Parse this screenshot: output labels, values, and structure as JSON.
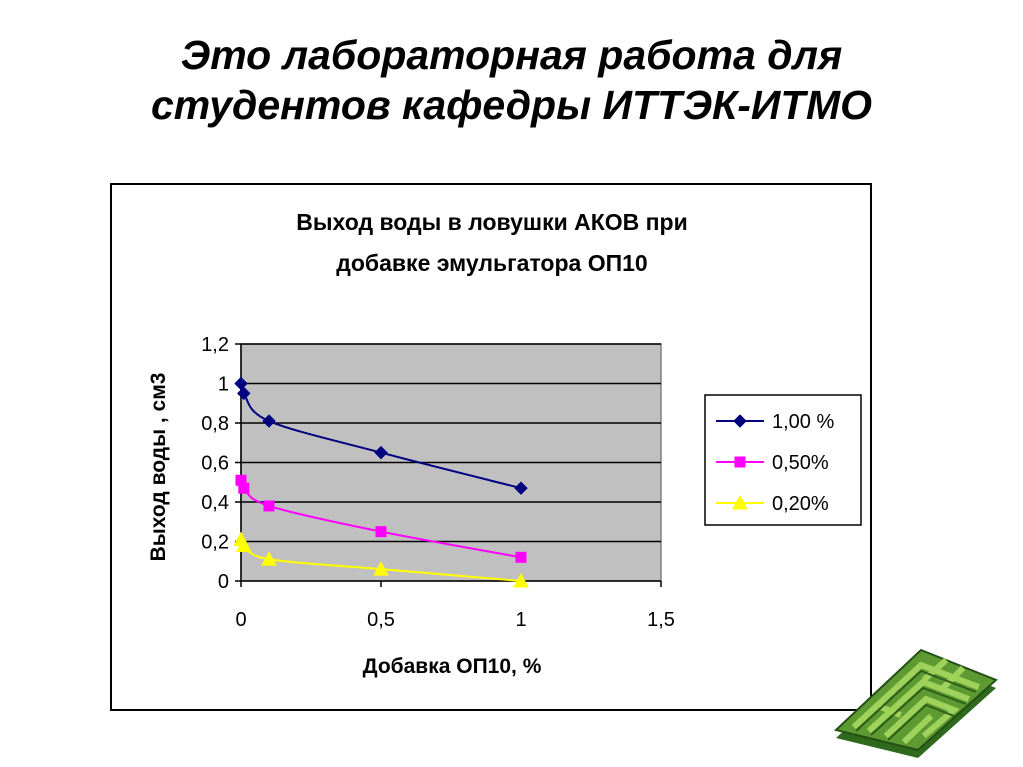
{
  "slide": {
    "title_line1": "Это лабораторная работа для",
    "title_line2": "студентов кафедры ИТТЭК-ИТМО"
  },
  "colors": {
    "plot_background": "#c0c0c0",
    "series_1": "#000080",
    "series_2": "#ff00ff",
    "series_3": "#ffff00"
  },
  "chart_data": {
    "type": "line",
    "title_line1": "Выход воды в ловушки АКОВ при",
    "title_line2": "добавке эмульгатора ОП10",
    "xlabel": "Добавка ОП10, %",
    "ylabel": "Выход воды , см3",
    "xlim": [
      0,
      1.5
    ],
    "ylim": [
      0,
      1.2
    ],
    "x_ticks": [
      "0",
      "0,5",
      "1",
      "1,5"
    ],
    "y_ticks": [
      "0",
      "0,2",
      "0,4",
      "0,6",
      "0,8",
      "1",
      "1,2"
    ],
    "grid": "horizontal",
    "legend_position": "right",
    "series": [
      {
        "name": "1,00 %",
        "marker": "diamond",
        "color": "#000080",
        "x": [
          0,
          0.01,
          0.1,
          0.5,
          1.0
        ],
        "y": [
          1.0,
          0.95,
          0.81,
          0.65,
          0.47
        ]
      },
      {
        "name": "0,50%",
        "marker": "square",
        "color": "#ff00ff",
        "x": [
          0,
          0.01,
          0.1,
          0.5,
          1.0
        ],
        "y": [
          0.51,
          0.47,
          0.38,
          0.25,
          0.12
        ]
      },
      {
        "name": "0,20%",
        "marker": "triangle",
        "color": "#ffff00",
        "x": [
          0,
          0.01,
          0.1,
          0.5,
          1.0
        ],
        "y": [
          0.21,
          0.18,
          0.11,
          0.06,
          0.0
        ]
      }
    ]
  }
}
